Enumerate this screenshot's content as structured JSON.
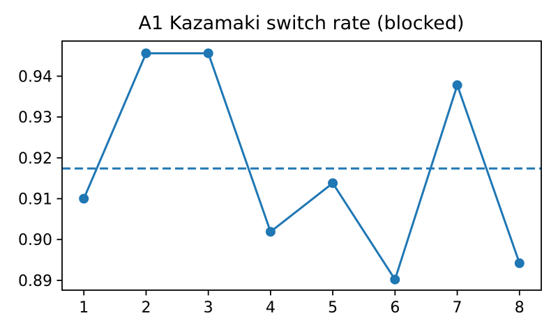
{
  "chart_data": {
    "type": "line",
    "title": "A1 Kazamaki switch rate (blocked)",
    "x": [
      1,
      2,
      3,
      4,
      5,
      6,
      7,
      8
    ],
    "y": [
      0.91,
      0.9456,
      0.9456,
      0.9019,
      0.9138,
      0.8902,
      0.9378,
      0.8942
    ],
    "mean_line": 0.9174,
    "mean_line_style": "dashed",
    "x_tick_labels": [
      "1",
      "2",
      "3",
      "4",
      "5",
      "6",
      "7",
      "8"
    ],
    "y_tick_labels": [
      "0.89",
      "0.90",
      "0.91",
      "0.92",
      "0.93",
      "0.94"
    ],
    "xlim": [
      0.65,
      8.35
    ],
    "ylim": [
      0.8876,
      0.9486
    ],
    "xlabel": "",
    "ylabel": "",
    "grid": false,
    "legend": false,
    "marker": "circle",
    "line_color": "#1f77b4",
    "axis_color": "#000000",
    "background": "#ffffff"
  }
}
